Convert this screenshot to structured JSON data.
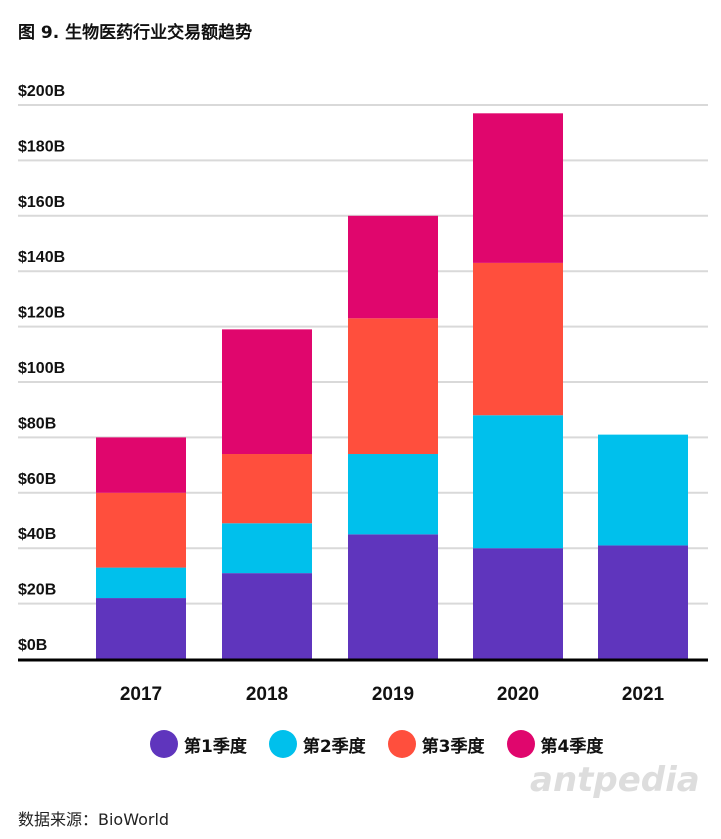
{
  "title": "图 9. 生物医药行业交易额趋势",
  "source": "数据来源：BioWorld",
  "watermark": "antpedia",
  "chart_data": {
    "type": "stacked-bar",
    "categories": [
      "2017",
      "2018",
      "2019",
      "2020",
      "2021"
    ],
    "ylim": [
      0,
      200
    ],
    "yticks": [
      0,
      20,
      40,
      60,
      80,
      100,
      120,
      140,
      160,
      180,
      200
    ],
    "ytick_labels": [
      "$0B",
      "$20B",
      "$40B",
      "$60B",
      "$80B",
      "$100B",
      "$120B",
      "$140B",
      "$160B",
      "$180B",
      "$200B"
    ],
    "grid": true,
    "legend_position": "bottom",
    "series": [
      {
        "name": "第1季度",
        "color": "#5f35bd",
        "values": [
          22,
          31,
          45,
          40,
          41
        ]
      },
      {
        "name": "第2季度",
        "color": "#00c0ec",
        "values": [
          11,
          18,
          29,
          48,
          40
        ]
      },
      {
        "name": "第3季度",
        "color": "#ff4f3d",
        "values": [
          27,
          25,
          49,
          55,
          null
        ]
      },
      {
        "name": "第4季度",
        "color": "#e0066d",
        "values": [
          20,
          45,
          37,
          54,
          null
        ]
      }
    ]
  }
}
